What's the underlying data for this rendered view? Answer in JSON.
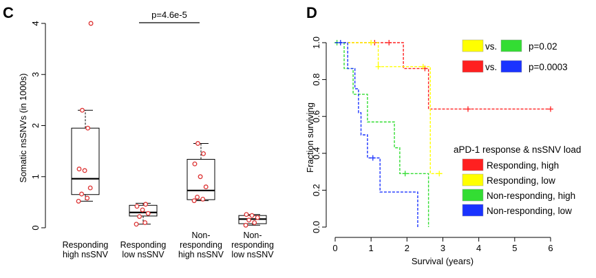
{
  "chart_data": [
    {
      "panel": "C",
      "type": "box",
      "ylabel": "Somatic  nsSNVs (in 1000s)",
      "ylim": [
        0,
        4
      ],
      "yticks": [
        0,
        1,
        2,
        3,
        4
      ],
      "categories": [
        "Responding\nhigh nsSNV",
        "Responding\nlow nsSNV",
        "Non-\nresponding\nhigh nsSNV",
        "Non-\nresponding\nlow nsSNV"
      ],
      "boxes": [
        {
          "whisker_low": 0.52,
          "q1": 0.65,
          "median": 0.96,
          "q3": 1.95,
          "whisker_high": 2.3,
          "points": [
            0.52,
            0.58,
            0.66,
            0.78,
            1.12,
            1.15,
            1.95,
            2.3,
            4.0
          ]
        },
        {
          "whisker_low": 0.07,
          "q1": 0.23,
          "median": 0.3,
          "q3": 0.44,
          "whisker_high": 0.48,
          "points": [
            0.07,
            0.1,
            0.22,
            0.28,
            0.35,
            0.42,
            0.46
          ]
        },
        {
          "whisker_low": 0.53,
          "q1": 0.55,
          "median": 0.73,
          "q3": 1.34,
          "whisker_high": 1.65,
          "points": [
            0.53,
            0.56,
            0.6,
            0.8,
            1.0,
            1.25,
            1.45,
            1.65
          ]
        },
        {
          "whisker_low": 0.05,
          "q1": 0.08,
          "median": 0.17,
          "q3": 0.24,
          "whisker_high": 0.26,
          "points": [
            0.05,
            0.1,
            0.15,
            0.2,
            0.24,
            0.26
          ]
        }
      ],
      "annotation": {
        "text": "p=4.6e-5",
        "between": [
          1,
          2
        ]
      }
    },
    {
      "panel": "D",
      "type": "line",
      "xlabel": "Survival (years)",
      "ylabel": "Fraction surviving",
      "xlim": [
        0,
        6
      ],
      "ylim": [
        0,
        1
      ],
      "xticks": [
        0,
        1,
        2,
        3,
        4,
        5,
        6
      ],
      "yticks": [
        "0.0",
        "0.2",
        "0.4",
        "0.6",
        "0.8",
        "1.0"
      ],
      "legend_title": "aPD-1 response & nsSNV load",
      "comparisons": [
        {
          "a_color": "#ffff00",
          "b_color": "#33dd33",
          "vs": "vs.",
          "p": "p=0.02"
        },
        {
          "a_color": "#ff2020",
          "b_color": "#1a33ff",
          "vs": "vs.",
          "p": "p=0.0003"
        }
      ],
      "series": [
        {
          "name": "Responding, high",
          "color": "#ff2020",
          "steps": [
            [
              0,
              1.0
            ],
            [
              1.9,
              1.0
            ],
            [
              1.9,
              0.86
            ],
            [
              2.6,
              0.86
            ],
            [
              2.6,
              0.64
            ],
            [
              6.0,
              0.64
            ]
          ],
          "censor": [
            [
              1.1,
              1.0
            ],
            [
              1.5,
              1.0
            ],
            [
              2.5,
              0.86
            ],
            [
              3.7,
              0.64
            ],
            [
              6.0,
              0.64
            ]
          ]
        },
        {
          "name": "Responding, low",
          "color": "#ffff00",
          "steps": [
            [
              0,
              1.0
            ],
            [
              1.2,
              1.0
            ],
            [
              1.2,
              0.87
            ],
            [
              2.65,
              0.87
            ],
            [
              2.65,
              0.57
            ],
            [
              2.65,
              0.29
            ],
            [
              3.0,
              0.29
            ]
          ],
          "censor": [
            [
              1.0,
              1.0
            ],
            [
              1.2,
              0.87
            ],
            [
              2.45,
              0.87
            ],
            [
              2.9,
              0.29
            ]
          ]
        },
        {
          "name": "Non-responding, high",
          "color": "#33dd33",
          "steps": [
            [
              0,
              1.0
            ],
            [
              0.25,
              1.0
            ],
            [
              0.25,
              0.86
            ],
            [
              0.5,
              0.86
            ],
            [
              0.5,
              0.72
            ],
            [
              0.9,
              0.72
            ],
            [
              0.9,
              0.57
            ],
            [
              1.65,
              0.57
            ],
            [
              1.65,
              0.43
            ],
            [
              1.8,
              0.43
            ],
            [
              1.8,
              0.29
            ],
            [
              2.6,
              0.29
            ],
            [
              2.6,
              0.0
            ]
          ],
          "censor": [
            [
              0.05,
              1.0
            ],
            [
              1.95,
              0.29
            ]
          ]
        },
        {
          "name": "Non-responding, low",
          "color": "#1a33ff",
          "steps": [
            [
              0,
              1.0
            ],
            [
              0.35,
              1.0
            ],
            [
              0.35,
              0.86
            ],
            [
              0.55,
              0.86
            ],
            [
              0.55,
              0.75
            ],
            [
              0.65,
              0.75
            ],
            [
              0.65,
              0.62
            ],
            [
              0.72,
              0.62
            ],
            [
              0.72,
              0.5
            ],
            [
              0.9,
              0.5
            ],
            [
              0.9,
              0.375
            ],
            [
              1.25,
              0.375
            ],
            [
              1.25,
              0.19
            ],
            [
              2.3,
              0.19
            ],
            [
              2.3,
              0.0
            ]
          ],
          "censor": [
            [
              0.15,
              1.0
            ],
            [
              1.05,
              0.375
            ]
          ]
        }
      ]
    }
  ]
}
